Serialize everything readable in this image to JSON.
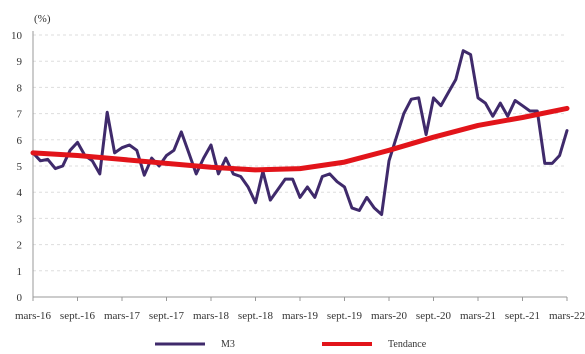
{
  "chart_data": {
    "type": "line",
    "unit_label": "(%)",
    "ylim": [
      0,
      10
    ],
    "y_ticks": [
      0,
      1,
      2,
      3,
      4,
      5,
      6,
      7,
      8,
      9,
      10
    ],
    "x_tick_labels": [
      "mars-16",
      "sept.-16",
      "mars-17",
      "sept.-17",
      "mars-18",
      "sept.-18",
      "mars-19",
      "sept.-19",
      "mars-20",
      "sept.-20",
      "mars-21",
      "sept.-21",
      "mars-22"
    ],
    "x_tick_months": [
      "2016-03",
      "2016-09",
      "2017-03",
      "2017-09",
      "2018-03",
      "2018-09",
      "2019-03",
      "2019-09",
      "2020-03",
      "2020-09",
      "2021-03",
      "2021-09",
      "2022-03"
    ],
    "grid": true,
    "legend_position": "bottom",
    "series": [
      {
        "name": "M3",
        "color": "#3f2a6b",
        "x": [
          "2016-03",
          "2016-04",
          "2016-05",
          "2016-06",
          "2016-07",
          "2016-08",
          "2016-09",
          "2016-10",
          "2016-11",
          "2016-12",
          "2017-01",
          "2017-02",
          "2017-03",
          "2017-04",
          "2017-05",
          "2017-06",
          "2017-07",
          "2017-08",
          "2017-09",
          "2017-10",
          "2017-11",
          "2017-12",
          "2018-01",
          "2018-02",
          "2018-03",
          "2018-04",
          "2018-05",
          "2018-06",
          "2018-07",
          "2018-08",
          "2018-09",
          "2018-10",
          "2018-11",
          "2018-12",
          "2019-01",
          "2019-02",
          "2019-03",
          "2019-04",
          "2019-05",
          "2019-06",
          "2019-07",
          "2019-08",
          "2019-09",
          "2019-10",
          "2019-11",
          "2019-12",
          "2020-01",
          "2020-02",
          "2020-03",
          "2020-04",
          "2020-05",
          "2020-06",
          "2020-07",
          "2020-08",
          "2020-09",
          "2020-10",
          "2020-11",
          "2020-12",
          "2021-01",
          "2021-02",
          "2021-03",
          "2021-04",
          "2021-05",
          "2021-06",
          "2021-07",
          "2021-08",
          "2021-09",
          "2021-10",
          "2021-11",
          "2021-12",
          "2022-01",
          "2022-02",
          "2022-03"
        ],
        "values": [
          5.5,
          5.2,
          5.25,
          4.9,
          5.0,
          5.6,
          5.9,
          5.4,
          5.2,
          4.7,
          7.05,
          5.5,
          5.7,
          5.8,
          5.6,
          4.65,
          5.3,
          5.0,
          5.4,
          5.6,
          6.3,
          5.5,
          4.7,
          5.3,
          5.8,
          4.7,
          5.3,
          4.7,
          4.6,
          4.2,
          3.6,
          4.8,
          3.7,
          4.1,
          4.5,
          4.5,
          3.8,
          4.2,
          3.8,
          4.6,
          4.7,
          4.4,
          4.2,
          3.4,
          3.3,
          3.8,
          3.4,
          3.15,
          5.2,
          6.1,
          7.0,
          7.55,
          7.6,
          6.2,
          7.6,
          7.3,
          7.8,
          8.3,
          9.4,
          9.25,
          7.6,
          7.4,
          6.9,
          7.4,
          6.9,
          7.5,
          7.3,
          7.1,
          7.1,
          5.1,
          5.1,
          5.4,
          6.35
        ]
      },
      {
        "name": "Tendance",
        "color": "#e2141a",
        "x": [
          "2016-03",
          "2016-09",
          "2017-03",
          "2017-09",
          "2018-03",
          "2018-09",
          "2019-03",
          "2019-09",
          "2020-03",
          "2020-09",
          "2021-03",
          "2021-09",
          "2022-03"
        ],
        "values": [
          5.5,
          5.4,
          5.25,
          5.1,
          4.95,
          4.85,
          4.9,
          5.15,
          5.6,
          6.1,
          6.55,
          6.85,
          7.2
        ]
      }
    ]
  }
}
